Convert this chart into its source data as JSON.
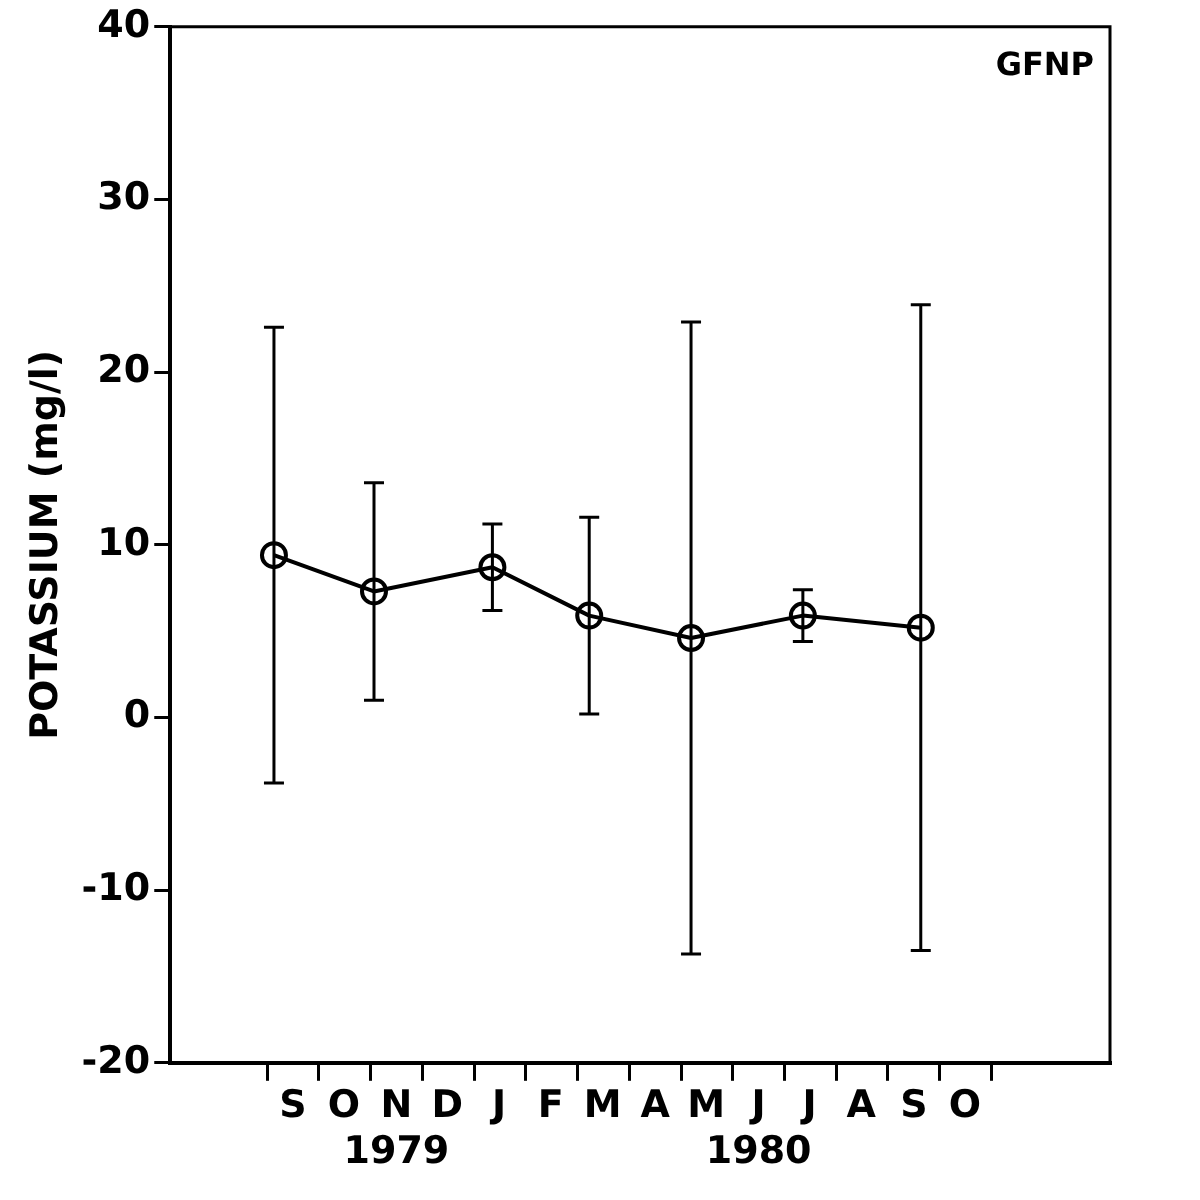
{
  "chart_data": {
    "type": "line",
    "ylabel": "POTASSIUM (mg/l)",
    "annotations": [
      "GFNP"
    ],
    "x": [
      "1979-09-05",
      "1979-11-03",
      "1980-01-12",
      "1980-03-08",
      "1980-05-07",
      "1980-07-12",
      "1980-09-20"
    ],
    "values": [
      9.4,
      7.3,
      8.7,
      5.9,
      4.6,
      5.9,
      5.2
    ],
    "errors": [
      13.2,
      6.3,
      2.5,
      5.7,
      18.3,
      1.5,
      18.7
    ],
    "color": "#000000",
    "marker": "circle",
    "line_style": "solid",
    "grid": false,
    "legend": false,
    "xlim": [
      "1979-07-05",
      "1981-01-10"
    ],
    "xticks": [
      {
        "value": "1979-09-01",
        "label": null
      },
      {
        "value": "1979-09-16",
        "label": "S"
      },
      {
        "value": "1979-10-01",
        "label": null
      },
      {
        "value": "1979-10-16",
        "label": "O"
      },
      {
        "value": "1979-11-01",
        "label": null
      },
      {
        "value": "1979-11-16",
        "label": "N\n1979"
      },
      {
        "value": "1979-12-01",
        "label": null
      },
      {
        "value": "1979-12-16",
        "label": "D"
      },
      {
        "value": "1980-01-01",
        "label": null
      },
      {
        "value": "1980-01-16",
        "label": "J"
      },
      {
        "value": "1980-02-01",
        "label": null
      },
      {
        "value": "1980-02-15",
        "label": "F"
      },
      {
        "value": "1980-03-01",
        "label": null
      },
      {
        "value": "1980-03-16",
        "label": "M"
      },
      {
        "value": "1980-04-01",
        "label": null
      },
      {
        "value": "1980-04-16",
        "label": "A"
      },
      {
        "value": "1980-05-01",
        "label": null
      },
      {
        "value": "1980-05-16",
        "label": "M"
      },
      {
        "value": "1980-06-01",
        "label": null
      },
      {
        "value": "1980-06-16",
        "label": "J\n1980"
      },
      {
        "value": "1980-07-01",
        "label": null
      },
      {
        "value": "1980-07-16",
        "label": "J"
      },
      {
        "value": "1980-08-01",
        "label": null
      },
      {
        "value": "1980-08-16",
        "label": "A"
      },
      {
        "value": "1980-09-01",
        "label": null
      },
      {
        "value": "1980-09-16",
        "label": "S"
      },
      {
        "value": "1980-10-01",
        "label": null
      },
      {
        "value": "1980-10-16",
        "label": "O"
      },
      {
        "value": "1980-11-01",
        "label": null
      }
    ],
    "ylim": [
      -20,
      40
    ],
    "yticks": [
      -20,
      -10,
      0,
      10,
      20,
      30,
      40
    ]
  }
}
